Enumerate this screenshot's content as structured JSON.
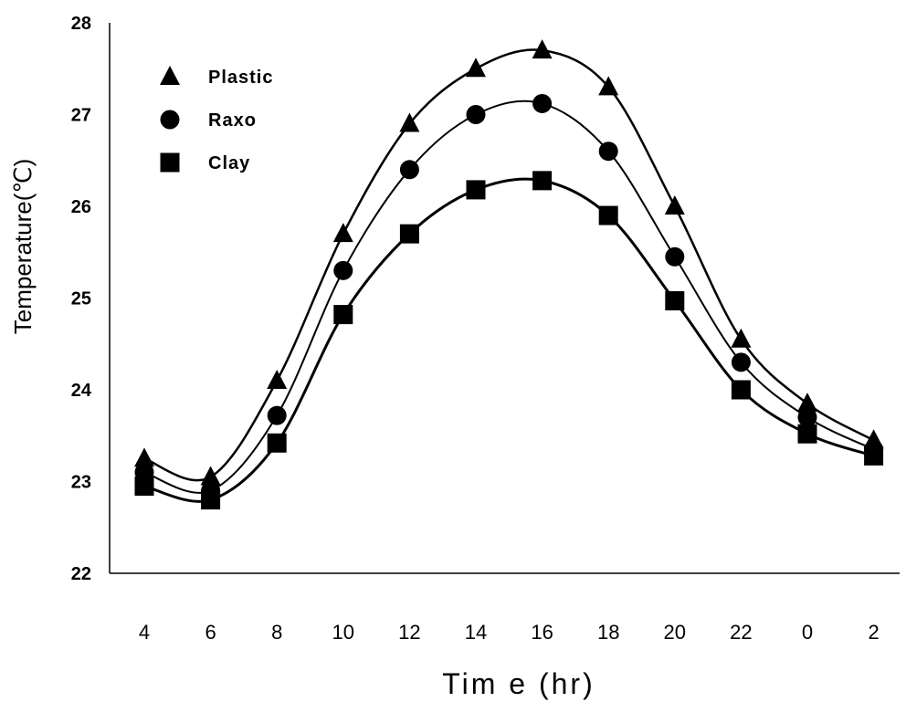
{
  "chart_data": {
    "type": "line",
    "categories": [
      "4",
      "6",
      "8",
      "10",
      "12",
      "14",
      "16",
      "18",
      "20",
      "22",
      "0",
      "2"
    ],
    "xlabel": "Tim e (hr)",
    "ylabel": "Temperature(℃)",
    "ylim": [
      22,
      28
    ],
    "yticks": [
      "22",
      "23",
      "24",
      "25",
      "26",
      "27",
      "28"
    ],
    "grid": false,
    "legend_position": "top-left",
    "series": [
      {
        "name": "Plastic",
        "marker": "triangle",
        "color": "#000000",
        "values": [
          23.25,
          23.05,
          24.1,
          25.7,
          26.9,
          27.5,
          27.7,
          27.3,
          26.0,
          24.55,
          23.85,
          23.45
        ]
      },
      {
        "name": "Raxo",
        "marker": "circle",
        "color": "#000000",
        "values": [
          23.1,
          22.9,
          23.72,
          25.3,
          26.4,
          27.0,
          27.12,
          26.6,
          25.45,
          24.3,
          23.7,
          23.35
        ]
      },
      {
        "name": "Clay",
        "marker": "square",
        "color": "#000000",
        "values": [
          22.95,
          22.8,
          23.42,
          24.82,
          25.7,
          26.18,
          26.28,
          25.9,
          24.97,
          24.0,
          23.52,
          23.28
        ]
      }
    ]
  }
}
